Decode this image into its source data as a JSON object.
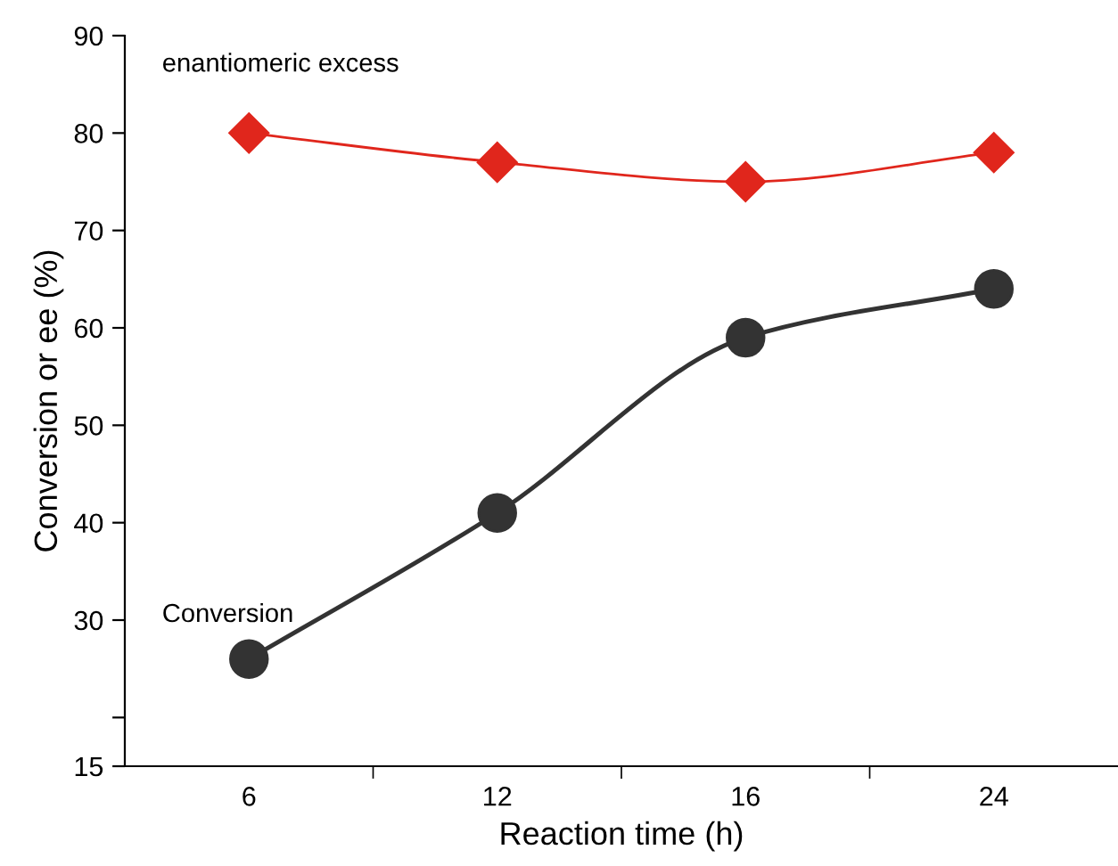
{
  "chart_data": {
    "type": "line",
    "xlabel": "Reaction time (h)",
    "ylabel": "Conversion or ee (%)",
    "categories": [
      "6",
      "12",
      "16",
      "24"
    ],
    "series": [
      {
        "name": "enantiomeric excess",
        "color": "#e0261c",
        "values": [
          80,
          77,
          75,
          78
        ],
        "marker": "diamond"
      },
      {
        "name": "Conversion",
        "color": "#333333",
        "values": [
          26,
          41,
          59,
          64
        ],
        "marker": "circle"
      }
    ],
    "ylim": [
      15,
      90
    ],
    "yticks": [
      15,
      {
        "value": 20,
        "label": null
      },
      30,
      40,
      50,
      60,
      70,
      80,
      90
    ],
    "grid": false,
    "legend": false
  }
}
